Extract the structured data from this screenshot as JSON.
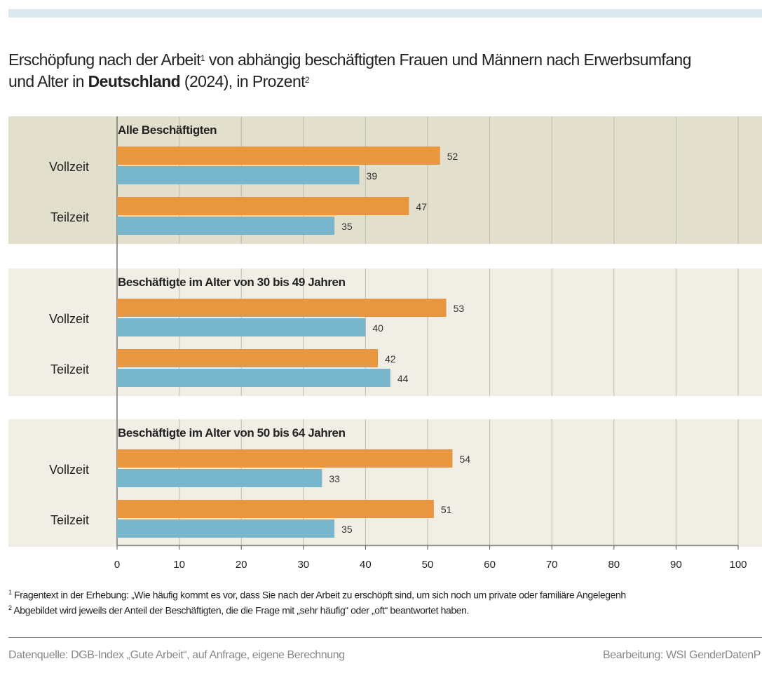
{
  "chart_data": {
    "type": "bar",
    "orientation": "horizontal",
    "title_part1": "Erschöpfung nach der Arbeit",
    "title_sup1": "1",
    "title_part2": " von abhängig beschäftigten Frauen und Männern nach Erwerbsumfang",
    "title_line2_a": "und Alter in ",
    "title_bold": "Deutschland",
    "title_line2_b": " (2024), in Prozent",
    "title_sup2": "2",
    "xlim": [
      0,
      100
    ],
    "xticks": [
      "0",
      "10",
      "20",
      "30",
      "40",
      "50",
      "60",
      "70",
      "80",
      "90",
      "100"
    ],
    "grid": true,
    "series_colors": {
      "Frauen": "#e8963f",
      "Männer": "#78b6cc"
    },
    "panels": [
      {
        "title": "Alle Beschäftigten",
        "background": "#e3dfcd",
        "groups": [
          {
            "label": "Vollzeit",
            "Frauen": 52,
            "Männer": 39
          },
          {
            "label": "Teilzeit",
            "Frauen": 47,
            "Männer": 35
          }
        ]
      },
      {
        "title": "Beschäftigte im Alter von 30 bis 49 Jahren",
        "background": "#f0eee5",
        "groups": [
          {
            "label": "Vollzeit",
            "Frauen": 53,
            "Männer": 40
          },
          {
            "label": "Teilzeit",
            "Frauen": 42,
            "Männer": 44
          }
        ]
      },
      {
        "title": "Beschäftigte im Alter von 50 bis 64 Jahren",
        "background": "#f0eee5",
        "groups": [
          {
            "label": "Vollzeit",
            "Frauen": 54,
            "Männer": 33
          },
          {
            "label": "Teilzeit",
            "Frauen": 51,
            "Männer": 35
          }
        ]
      }
    ]
  },
  "footnotes": {
    "n1_sup": "1",
    "n1": " Fragentext in der Erhebung: „Wie häufig kommt es vor, dass Sie nach der Arbeit zu erschöpft sind, um sich noch um private oder familiäre Angelegenh",
    "n2_sup": "2",
    "n2": " Abgebildet wird jeweils der Anteil der Beschäftigten, die die Frage mit „sehr häufig“ oder „oft“ beantwortet haben."
  },
  "source": "Datenquelle: DGB-Index „Gute Arbeit“, auf Anfrage, eigene Berechnung",
  "credit": "Bearbeitung: WSI GenderDatenP"
}
